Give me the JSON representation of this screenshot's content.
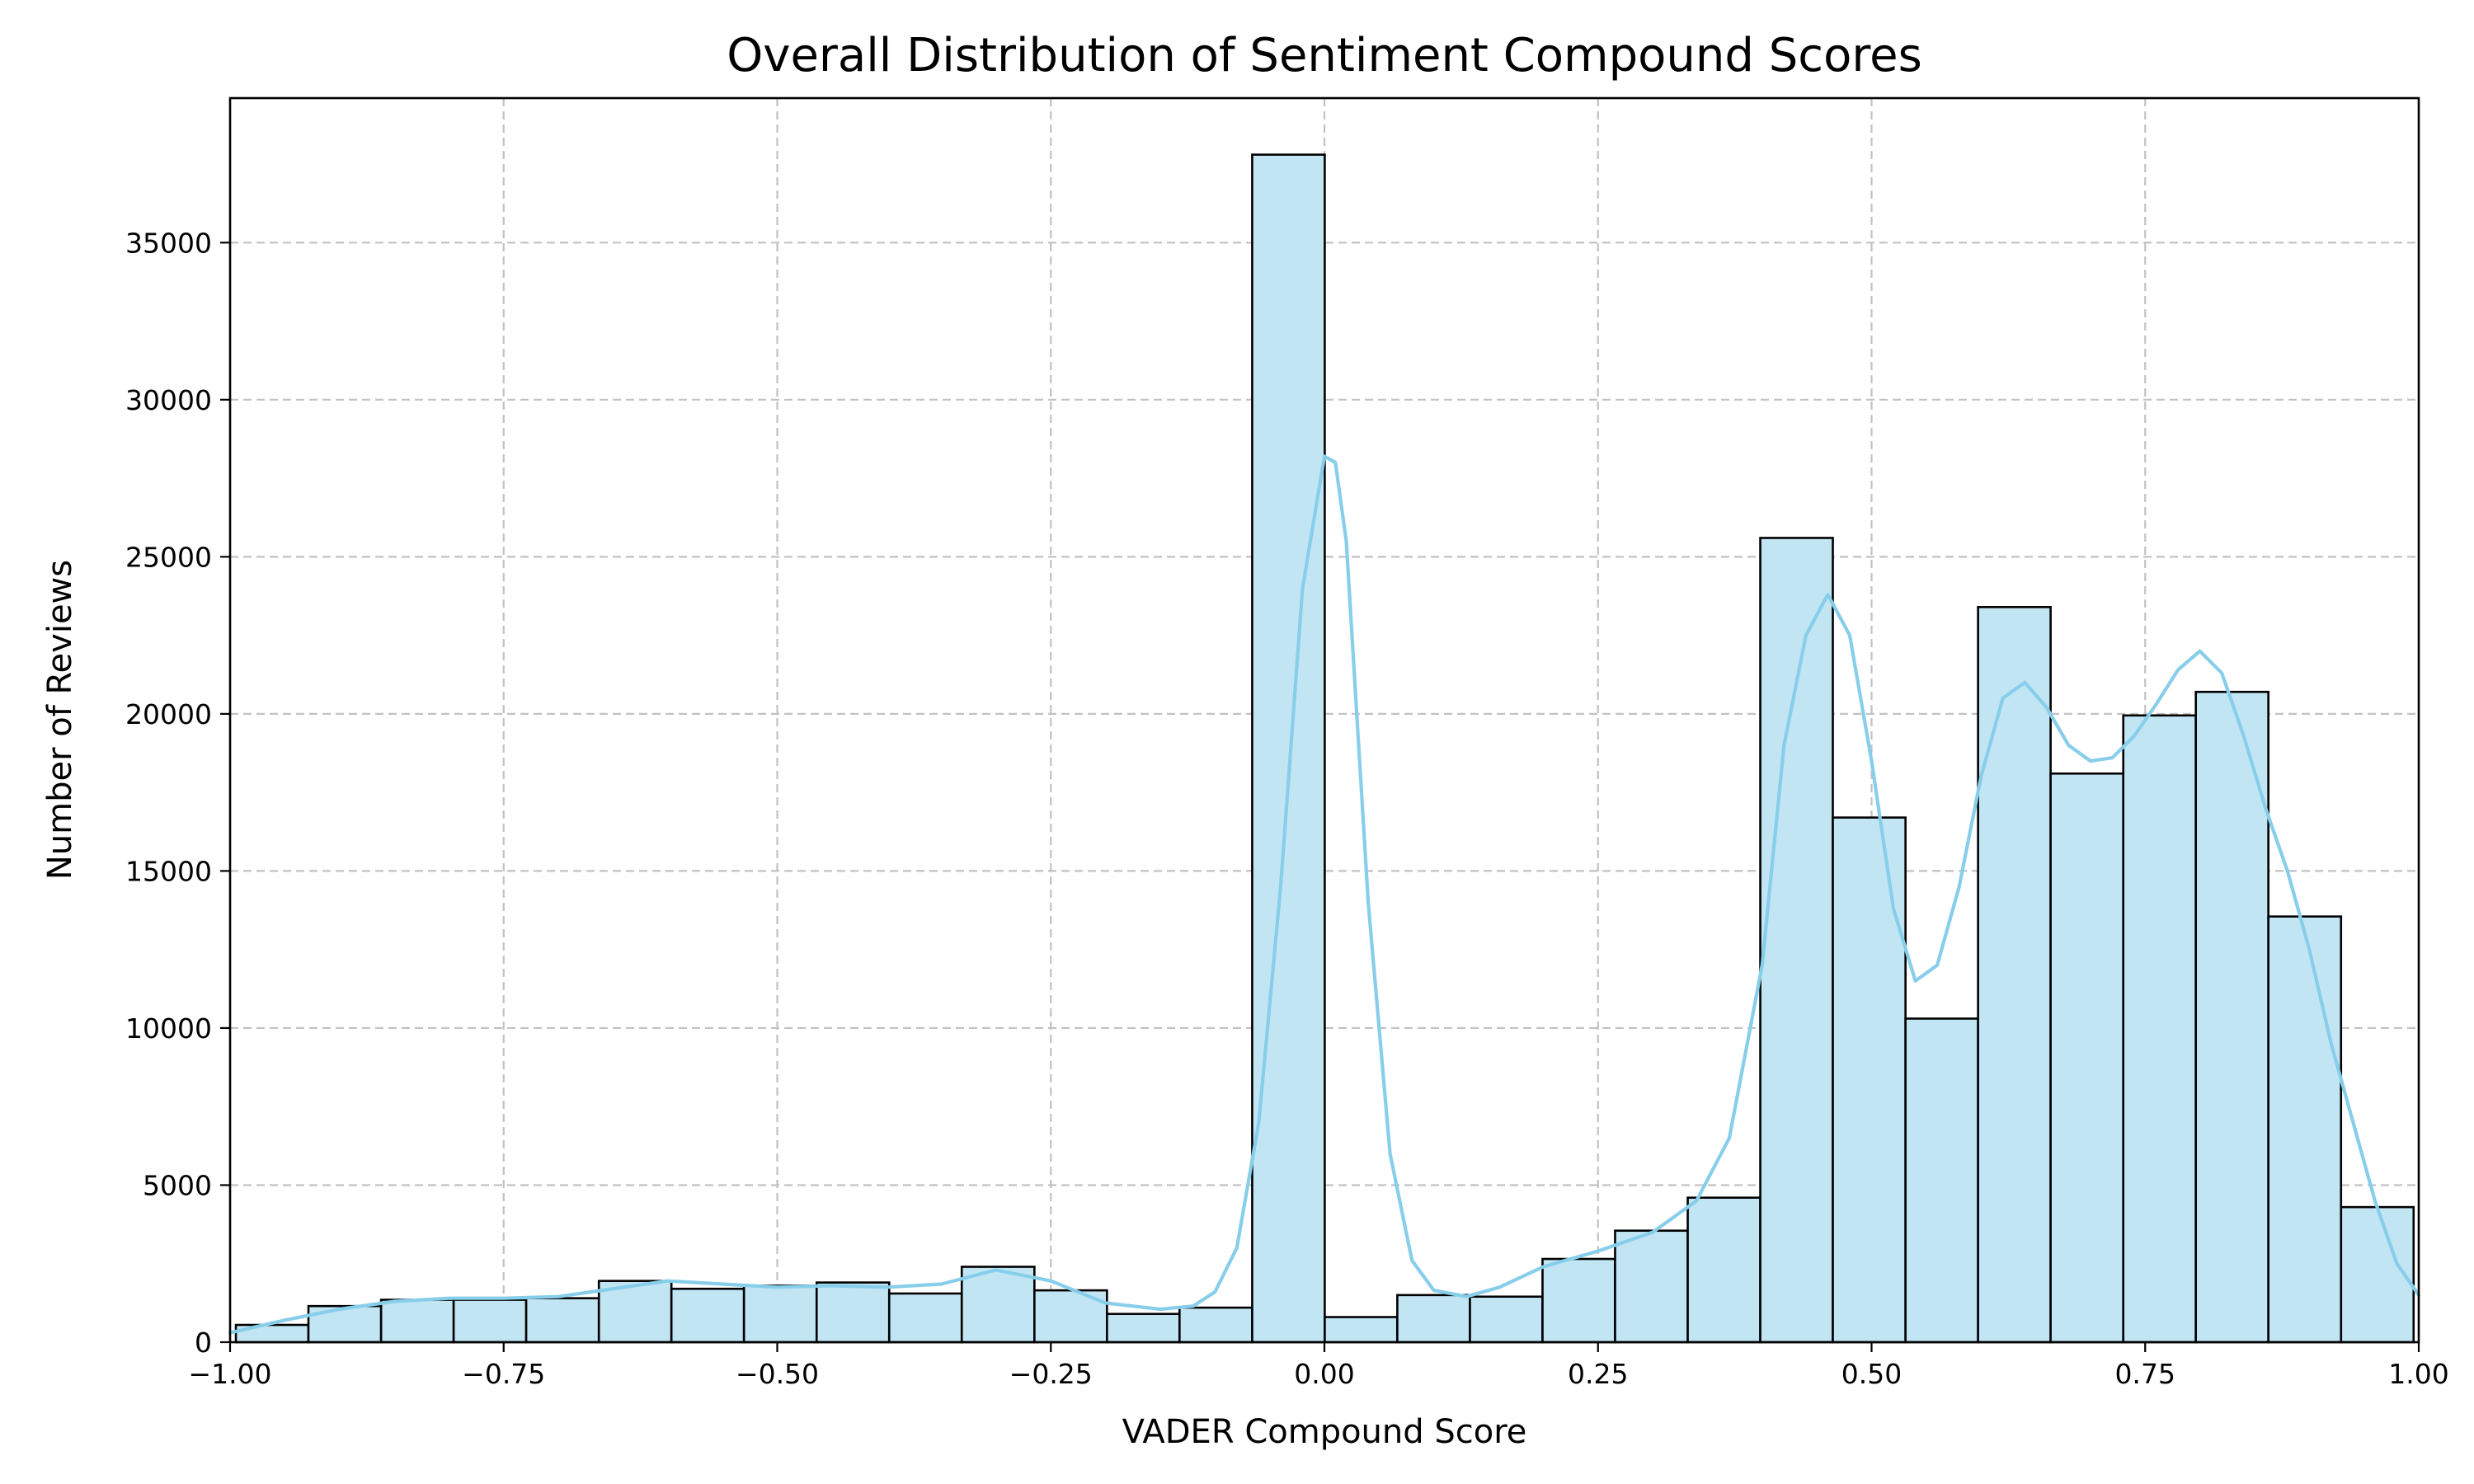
{
  "colors": {
    "bar_fill": "#c2e5f4",
    "bar_edge": "#000000",
    "kde_line": "#87ceeb",
    "grid": "#c2c2c2"
  },
  "chart_data": {
    "type": "bar",
    "histogram": true,
    "title": "Overall Distribution of Sentiment Compound Scores",
    "xlabel": "VADER Compound Score",
    "ylabel": "Number of Reviews",
    "xlim": [
      -1.0,
      1.0
    ],
    "ylim": [
      0,
      39600
    ],
    "grid": true,
    "bin_edges": [
      -0.9947,
      -0.9284,
      -0.862,
      -0.7957,
      -0.7294,
      -0.663,
      -0.5967,
      -0.5304,
      -0.464,
      -0.3977,
      -0.3314,
      -0.265,
      -0.1987,
      -0.1324,
      -0.066,
      0.0003,
      0.0666,
      0.133,
      0.1993,
      0.2656,
      0.332,
      0.3983,
      0.4646,
      0.531,
      0.5973,
      0.6636,
      0.73,
      0.7963,
      0.8626,
      0.929,
      0.9953
    ],
    "values": [
      550,
      1150,
      1350,
      1350,
      1400,
      1950,
      1700,
      1800,
      1900,
      1550,
      2400,
      1650,
      900,
      1100,
      37800,
      800,
      1500,
      1450,
      2650,
      3550,
      4600,
      25600,
      16700,
      10300,
      23400,
      18100,
      19950,
      20700,
      13550,
      4300
    ],
    "kde": {
      "name": "KDE",
      "x": [
        -1.0,
        -0.95,
        -0.9,
        -0.85,
        -0.8,
        -0.75,
        -0.7,
        -0.65,
        -0.6,
        -0.55,
        -0.5,
        -0.45,
        -0.4,
        -0.35,
        -0.3,
        -0.25,
        -0.2,
        -0.15,
        -0.12,
        -0.1,
        -0.08,
        -0.06,
        -0.04,
        -0.02,
        0.0,
        0.01,
        0.02,
        0.04,
        0.06,
        0.08,
        0.1,
        0.13,
        0.16,
        0.2,
        0.25,
        0.3,
        0.34,
        0.37,
        0.4,
        0.42,
        0.44,
        0.46,
        0.48,
        0.5,
        0.52,
        0.54,
        0.56,
        0.58,
        0.6,
        0.62,
        0.64,
        0.66,
        0.68,
        0.7,
        0.72,
        0.74,
        0.76,
        0.78,
        0.8,
        0.82,
        0.84,
        0.86,
        0.88,
        0.9,
        0.92,
        0.94,
        0.96,
        0.98,
        1.0
      ],
      "y": [
        300,
        700,
        1050,
        1300,
        1400,
        1400,
        1450,
        1700,
        1950,
        1850,
        1750,
        1800,
        1750,
        1850,
        2300,
        1950,
        1250,
        1050,
        1150,
        1600,
        3000,
        7000,
        14500,
        24000,
        28200,
        28000,
        25500,
        14000,
        6000,
        2600,
        1650,
        1450,
        1750,
        2400,
        2900,
        3500,
        4500,
        6500,
        12000,
        19000,
        22500,
        23800,
        22500,
        18500,
        13800,
        11500,
        12000,
        14500,
        18000,
        20500,
        21000,
        20200,
        19000,
        18500,
        18600,
        19300,
        20300,
        21400,
        22000,
        21300,
        19300,
        17000,
        15000,
        12500,
        9500,
        7000,
        4500,
        2500,
        1500
      ]
    },
    "x_ticks": [
      -1.0,
      -0.75,
      -0.5,
      -0.25,
      0.0,
      0.25,
      0.5,
      0.75,
      1.0
    ],
    "x_tick_labels": [
      "−1.00",
      "−0.75",
      "−0.50",
      "−0.25",
      "0.00",
      "0.25",
      "0.50",
      "0.75",
      "1.00"
    ],
    "y_ticks": [
      0,
      5000,
      10000,
      15000,
      20000,
      25000,
      30000,
      35000
    ],
    "y_tick_labels": [
      "0",
      "5000",
      "10000",
      "15000",
      "20000",
      "25000",
      "30000",
      "35000"
    ]
  }
}
